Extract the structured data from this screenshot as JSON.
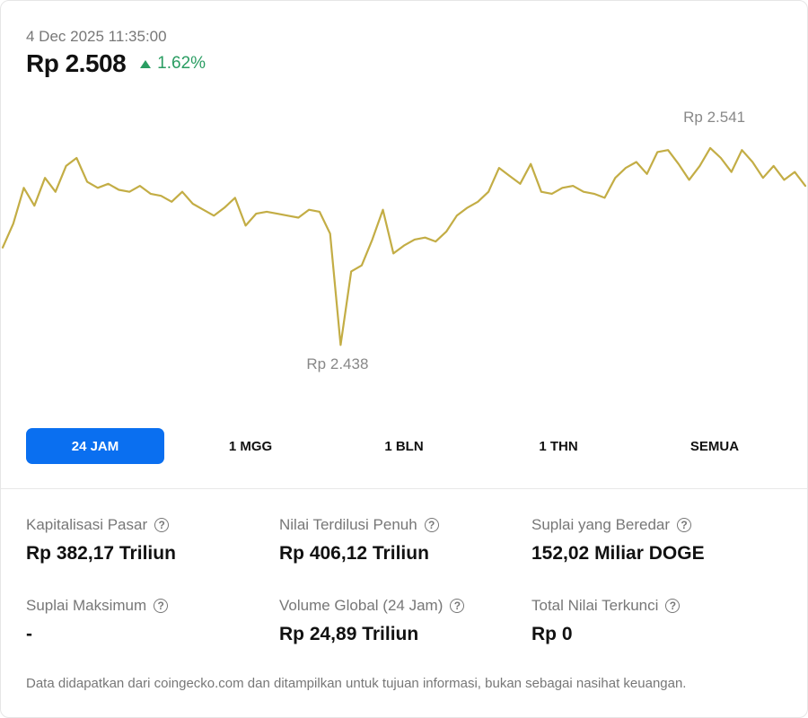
{
  "header": {
    "timestamp": "4 Dec 2025 11:35:00",
    "price": "Rp 2.508",
    "change": "1.62%",
    "change_icon": "triangle-up-icon",
    "change_color": "#2a9d62"
  },
  "chart": {
    "high_label": "Rp 2.541",
    "low_label": "Rp 2.438",
    "line_color": "#c3ad45"
  },
  "chart_data": {
    "type": "line",
    "ylim": [
      2430,
      2550
    ],
    "series": [
      {
        "values": [
          2491,
          2503,
          2521,
          2512,
          2526,
          2519,
          2532,
          2536,
          2524,
          2521,
          2523,
          2520,
          2519,
          2522,
          2518,
          2517,
          2514,
          2519,
          2513,
          2510,
          2507,
          2511,
          2516,
          2502,
          2508,
          2509,
          2508,
          2507,
          2506,
          2510,
          2509,
          2498,
          2442,
          2479,
          2482,
          2495,
          2510,
          2488,
          2492,
          2495,
          2496,
          2494,
          2499,
          2507,
          2511,
          2514,
          2519,
          2531,
          2527,
          2523,
          2533,
          2519,
          2518,
          2521,
          2522,
          2519,
          2518,
          2516,
          2526,
          2531,
          2534,
          2528,
          2539,
          2540,
          2533,
          2525,
          2532,
          2541,
          2536,
          2529,
          2540,
          2534,
          2526,
          2532,
          2525,
          2529,
          2522
        ]
      }
    ]
  },
  "tabs": [
    {
      "label": "24 JAM",
      "active": true
    },
    {
      "label": "1 MGG",
      "active": false
    },
    {
      "label": "1 BLN",
      "active": false
    },
    {
      "label": "1 THN",
      "active": false
    },
    {
      "label": "SEMUA",
      "active": false
    }
  ],
  "stats": [
    {
      "label": "Kapitalisasi Pasar",
      "value": "Rp 382,17 Triliun"
    },
    {
      "label": "Nilai Terdilusi Penuh",
      "value": "Rp 406,12 Triliun"
    },
    {
      "label": "Suplai yang Beredar",
      "value": "152,02 Miliar DOGE"
    },
    {
      "label": "Suplai Maksimum",
      "value": "-"
    },
    {
      "label": "Volume Global (24 Jam)",
      "value": "Rp 24,89 Triliun"
    },
    {
      "label": "Total Nilai Terkunci",
      "value": "Rp 0"
    }
  ],
  "help_glyph": "?",
  "disclaimer": "Data didapatkan dari coingecko.com dan ditampilkan untuk tujuan informasi, bukan sebagai nasihat keuangan.",
  "accent_color": "#0a6ff0"
}
